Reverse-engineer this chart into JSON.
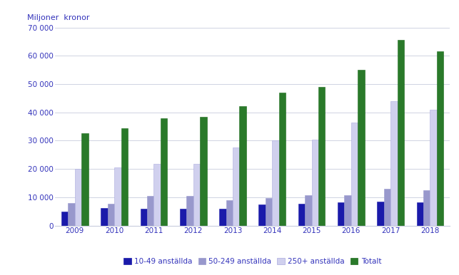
{
  "years": [
    2009,
    2010,
    2011,
    2012,
    2013,
    2014,
    2015,
    2016,
    2017,
    2018
  ],
  "series": {
    "10-49 anställda": [
      5000,
      6200,
      6000,
      6000,
      6000,
      7500,
      7800,
      8200,
      8500,
      8200
    ],
    "50-249 anställda": [
      8000,
      7800,
      10500,
      10500,
      9000,
      9800,
      10800,
      10700,
      13000,
      12500
    ],
    "250+ anställda": [
      20000,
      20500,
      21700,
      21700,
      27500,
      30000,
      30300,
      36300,
      44000,
      41000
    ],
    "Totalt": [
      32500,
      34500,
      37800,
      38500,
      42200,
      47000,
      49000,
      55000,
      65500,
      61500
    ]
  },
  "colors": {
    "10-49 anställda": "#1a1aaa",
    "50-249 anställda": "#9898cc",
    "250+ anställda": "#d0d0ee",
    "Totalt": "#2a7a2a"
  },
  "edge_colors": {
    "10-49 anställda": "#1a1aaa",
    "50-249 anställda": "#9898cc",
    "250+ anställda": "#aaaadd",
    "Totalt": "#1a6a1a"
  },
  "ylabel": "Miljoner  kronor",
  "ylim": [
    0,
    70000
  ],
  "yticks": [
    0,
    10000,
    20000,
    30000,
    40000,
    50000,
    60000,
    70000
  ],
  "ytick_labels": [
    "0",
    "10 000",
    "20 000",
    "30 000",
    "40 000",
    "50 000",
    "60 000",
    "70 000"
  ],
  "background_color": "#ffffff",
  "grid_color": "#c8ccdd",
  "text_color": "#3333bb",
  "bar_width": 0.17,
  "figsize": [
    6.43,
    3.86
  ],
  "dpi": 100
}
